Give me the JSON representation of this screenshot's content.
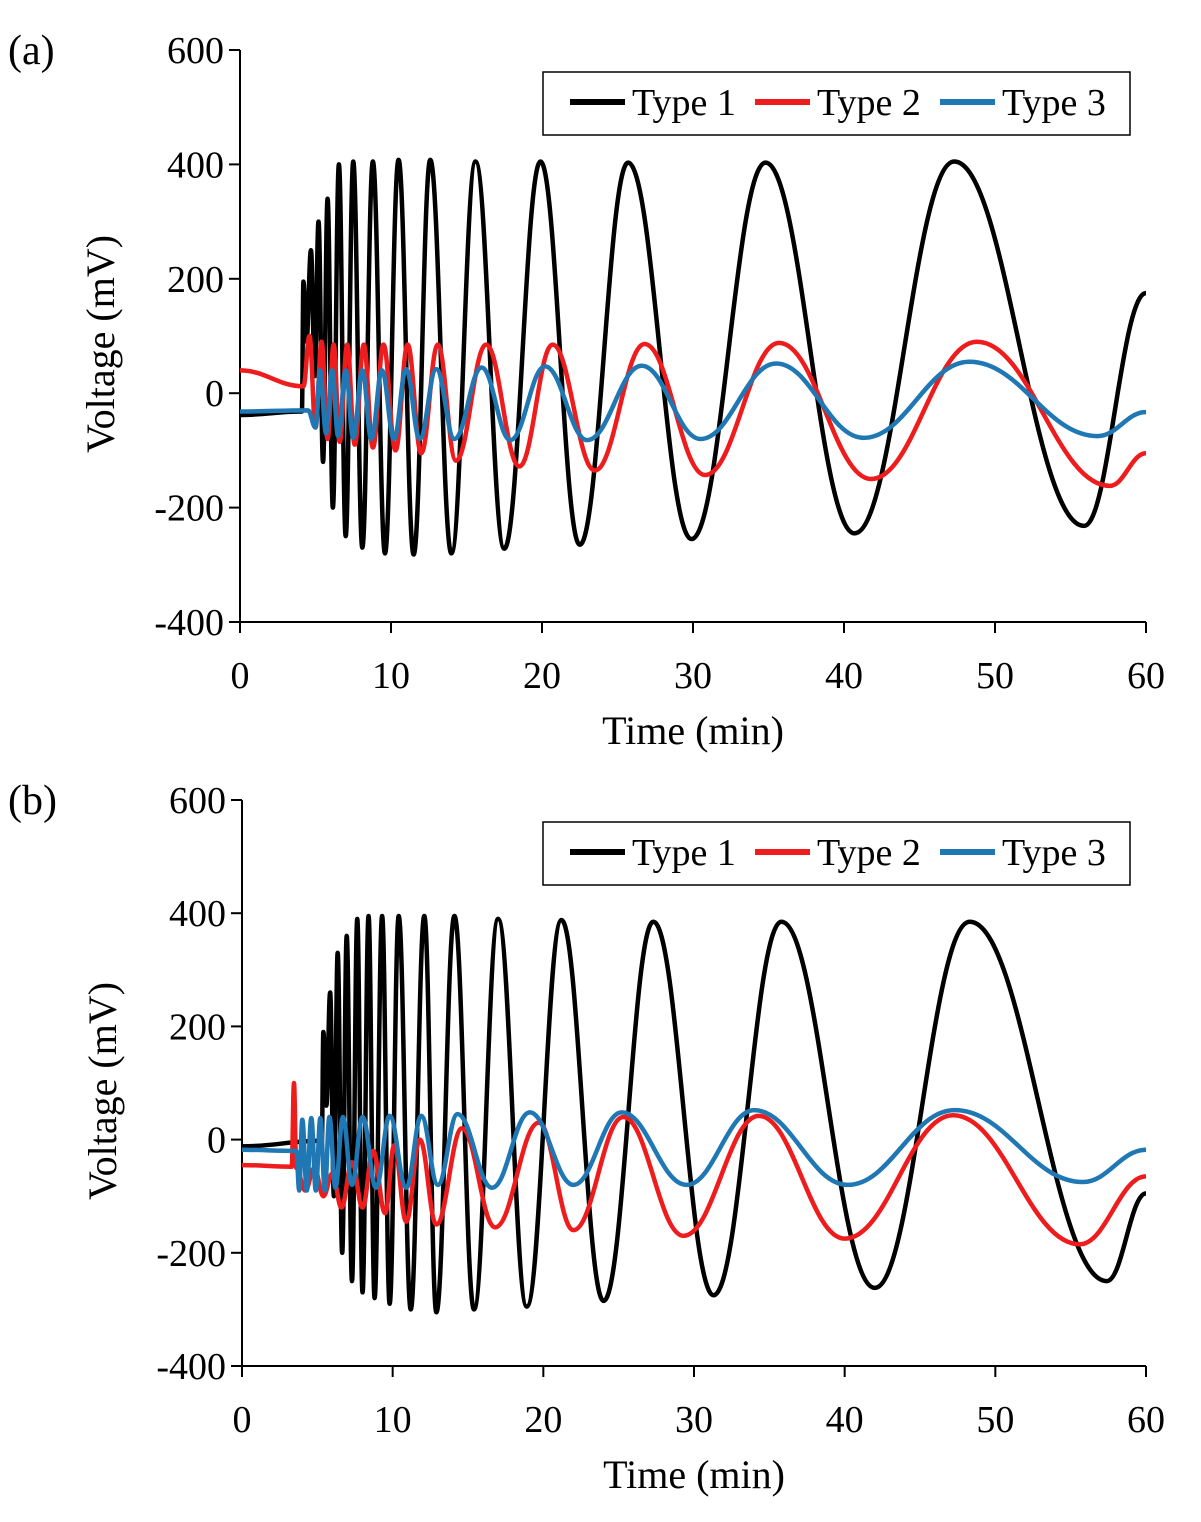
{
  "chart_data": [
    {
      "type": "line",
      "label": "(a)",
      "xlabel": "Time (min)",
      "ylabel": "Voltage (mV)",
      "xlim": [
        0,
        60
      ],
      "xticks": [
        0,
        10,
        20,
        30,
        40,
        50,
        60
      ],
      "ylim": [
        -400,
        600
      ],
      "yticks": [
        -400,
        -200,
        0,
        200,
        400,
        600
      ],
      "grid": false,
      "legend": "upper right",
      "series": [
        {
          "name": "Type 1",
          "color": "#000000",
          "x": [
            0,
            4.1,
            4.2,
            4.4,
            4.7,
            4.95,
            5.2,
            5.5,
            5.8,
            6.15,
            6.55,
            7.0,
            7.5,
            8.1,
            8.8,
            9.6,
            10.5,
            11.5,
            12.6,
            14.0,
            15.6,
            17.5,
            19.9,
            22.5,
            25.7,
            29.9,
            34.8,
            40.7,
            47.3,
            55.9,
            60
          ],
          "values": [
            -38,
            -32,
            195,
            90,
            250,
            30,
            300,
            -120,
            340,
            -200,
            400,
            -250,
            405,
            -270,
            405,
            -280,
            408,
            -282,
            408,
            -280,
            405,
            -272,
            405,
            -265,
            403,
            -255,
            403,
            -245,
            405,
            -232,
            175
          ]
        },
        {
          "name": "Type 2",
          "color": "#ee1c1c",
          "x": [
            0,
            4.2,
            4.6,
            5.0,
            5.4,
            5.8,
            6.2,
            6.6,
            7.1,
            7.6,
            8.2,
            8.8,
            9.5,
            10.3,
            11.1,
            12.0,
            13.1,
            14.3,
            16.3,
            18.5,
            20.7,
            23.5,
            26.8,
            30.8,
            35.7,
            41.8,
            48.8,
            57.6,
            60
          ],
          "values": [
            40,
            12,
            100,
            -60,
            90,
            -80,
            85,
            -85,
            85,
            -90,
            85,
            -95,
            85,
            -100,
            85,
            -105,
            85,
            -118,
            85,
            -128,
            85,
            -135,
            86,
            -143,
            88,
            -150,
            90,
            -162,
            -105
          ]
        },
        {
          "name": "Type 3",
          "color": "#1f77b4",
          "x": [
            0,
            4.5,
            5.0,
            5.3,
            5.7,
            6.1,
            6.5,
            7.0,
            7.5,
            8.1,
            8.7,
            9.4,
            10.2,
            11.0,
            11.9,
            13.0,
            14.2,
            16.0,
            17.9,
            20.2,
            23.0,
            26.6,
            30.5,
            35.5,
            41.3,
            48.3,
            56.8,
            60
          ],
          "values": [
            -32,
            -30,
            -60,
            40,
            -70,
            40,
            -75,
            40,
            -78,
            40,
            -80,
            40,
            -80,
            42,
            -80,
            42,
            -80,
            45,
            -82,
            47,
            -82,
            48,
            -80,
            52,
            -78,
            55,
            -75,
            -33
          ]
        }
      ]
    },
    {
      "type": "line",
      "label": "(b)",
      "xlabel": "Time (min)",
      "ylabel": "Voltage (mV)",
      "xlim": [
        0,
        60
      ],
      "xticks": [
        0,
        10,
        20,
        30,
        40,
        50,
        60
      ],
      "ylim": [
        -400,
        600
      ],
      "yticks": [
        -400,
        -200,
        0,
        200,
        400,
        600
      ],
      "grid": false,
      "legend": "upper right",
      "series": [
        {
          "name": "Type 1",
          "color": "#000000",
          "x": [
            0,
            5.3,
            5.4,
            5.6,
            5.85,
            6.1,
            6.35,
            6.65,
            6.95,
            7.3,
            7.65,
            8.0,
            8.4,
            8.8,
            9.3,
            9.8,
            10.4,
            11.2,
            12.1,
            12.9,
            14.1,
            15.4,
            17.0,
            18.9,
            21.2,
            24.0,
            27.3,
            31.3,
            35.8,
            42.0,
            48.3,
            57.4,
            60
          ],
          "values": [
            -12,
            -2,
            190,
            60,
            260,
            -100,
            330,
            -200,
            360,
            -250,
            390,
            -270,
            395,
            -280,
            395,
            -290,
            395,
            -300,
            395,
            -305,
            395,
            -300,
            390,
            -295,
            388,
            -285,
            385,
            -275,
            385,
            -262,
            385,
            -250,
            -95
          ]
        },
        {
          "name": "Type 2",
          "color": "#ee1c1c",
          "x": [
            0,
            3.3,
            3.45,
            3.6,
            4.2,
            4.8,
            5.4,
            6.0,
            6.6,
            7.3,
            8.0,
            8.7,
            9.5,
            10.1,
            10.9,
            11.8,
            12.9,
            14.6,
            16.8,
            19.7,
            22.0,
            25.3,
            29.3,
            34.3,
            40.0,
            47.2,
            55.6,
            60
          ],
          "values": [
            -45,
            -48,
            100,
            -50,
            -90,
            -50,
            -100,
            -60,
            -120,
            -40,
            -120,
            -20,
            -130,
            -10,
            -145,
            0,
            -150,
            20,
            -155,
            30,
            -160,
            40,
            -170,
            42,
            -175,
            43,
            -185,
            -65
          ]
        },
        {
          "name": "Type 3",
          "color": "#1f77b4",
          "x": [
            0,
            3.6,
            3.8,
            4.0,
            4.3,
            4.6,
            4.9,
            5.2,
            5.5,
            5.8,
            6.2,
            6.7,
            7.3,
            8.0,
            8.9,
            9.8,
            10.9,
            11.9,
            13.0,
            14.3,
            16.6,
            19.1,
            22.0,
            25.2,
            29.5,
            34.0,
            40.2,
            47.3,
            55.8,
            60
          ],
          "values": [
            -18,
            -20,
            -90,
            35,
            -90,
            38,
            -90,
            38,
            -90,
            40,
            -85,
            40,
            -80,
            40,
            -85,
            42,
            -85,
            42,
            -80,
            45,
            -85,
            48,
            -80,
            48,
            -80,
            52,
            -80,
            52,
            -75,
            -18
          ]
        }
      ]
    }
  ]
}
